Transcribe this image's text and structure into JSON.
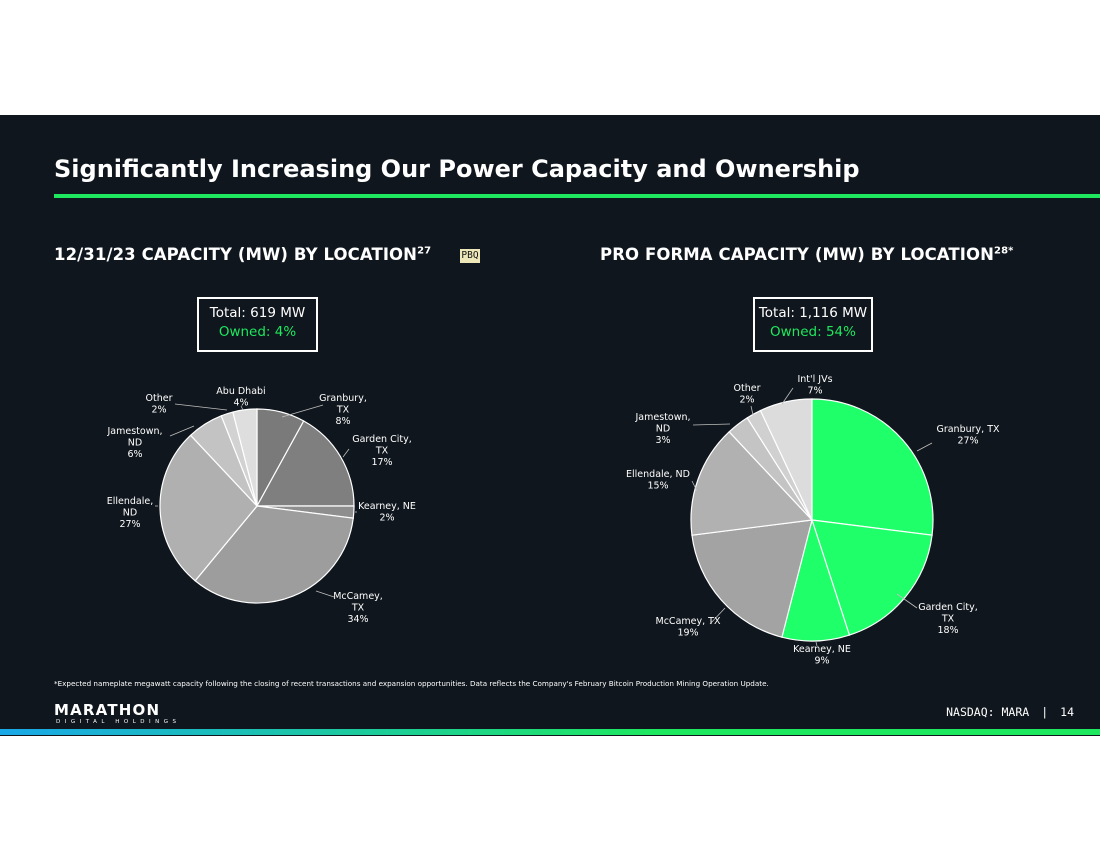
{
  "title": "Significantly Increasing Our Power Capacity and Ownership",
  "colors": {
    "background": "#0f161d",
    "accent_green": "#1ee85e",
    "white": "#ffffff"
  },
  "left_panel": {
    "heading": "12/31/23 CAPACITY (MW) BY LOCATION",
    "superscript": "27",
    "tag": "PBQ",
    "total_label": "Total: 619 MW",
    "owned_label": "Owned: 4%"
  },
  "right_panel": {
    "heading": "PRO FORMA CAPACITY (MW) BY LOCATION",
    "superscript": "28*",
    "total_label": "Total: 1,116 MW",
    "owned_label": "Owned: 54%"
  },
  "chart_data": [
    {
      "type": "pie",
      "title": "12/31/23 CAPACITY (MW) BY LOCATION",
      "total": "Total: 619 MW",
      "owned": "Owned: 4%",
      "slices": [
        {
          "label": [
            "Granbury,",
            "TX",
            "8%"
          ],
          "value": 8,
          "color": "#7a7a7a"
        },
        {
          "label": [
            "Garden City,",
            "TX",
            "17%"
          ],
          "value": 17,
          "color": "#7f7f7f"
        },
        {
          "label": [
            "Kearney, NE",
            "2%"
          ],
          "value": 2,
          "color": "#8e8e8e"
        },
        {
          "label": [
            "McCamey,",
            "TX",
            "34%"
          ],
          "value": 34,
          "color": "#9d9d9d"
        },
        {
          "label": [
            "Ellendale,",
            "ND",
            "27%"
          ],
          "value": 27,
          "color": "#b0b0b0"
        },
        {
          "label": [
            "Jamestown,",
            "ND",
            "6%"
          ],
          "value": 6,
          "color": "#c3c3c3"
        },
        {
          "label": [
            "Other",
            "2%"
          ],
          "value": 2,
          "color": "#d2d2d2"
        },
        {
          "label": [
            "Abu Dhabi",
            "4%"
          ],
          "value": 4,
          "color": "#dedede"
        }
      ]
    },
    {
      "type": "pie",
      "title": "PRO FORMA CAPACITY (MW) BY LOCATION",
      "total": "Total: 1,116 MW",
      "owned": "Owned: 54%",
      "slices": [
        {
          "label": [
            "Granbury, TX",
            "27%"
          ],
          "value": 27,
          "color": "#1eff6a"
        },
        {
          "label": [
            "Garden City,",
            "TX",
            "18%"
          ],
          "value": 18,
          "color": "#1eff6a"
        },
        {
          "label": [
            "Kearney, NE",
            "9%"
          ],
          "value": 9,
          "color": "#1eff6a"
        },
        {
          "label": [
            "McCamey, TX",
            "19%"
          ],
          "value": 19,
          "color": "#a3a3a3"
        },
        {
          "label": [
            "Ellendale, ND",
            "15%"
          ],
          "value": 15,
          "color": "#b1b1b1"
        },
        {
          "label": [
            "Jamestown,",
            "ND",
            "3%"
          ],
          "value": 3,
          "color": "#c4c4c4"
        },
        {
          "label": [
            "Other",
            "2%"
          ],
          "value": 2,
          "color": "#d0d0d0"
        },
        {
          "label": [
            "Int'l JVs",
            "7%"
          ],
          "value": 7,
          "color": "#dcdcdc"
        }
      ]
    }
  ],
  "footnote": "*Expected nameplate megawatt capacity following the closing of recent transactions and expansion opportunities. Data reflects the Company's February Bitcoin Production Mining Operation Update.",
  "brand": {
    "name": "MARATHON",
    "subtitle": "DIGITAL HOLDINGS"
  },
  "footer": {
    "ticker": "NASDAQ: MARA",
    "separator": "|",
    "page_number": "14"
  }
}
